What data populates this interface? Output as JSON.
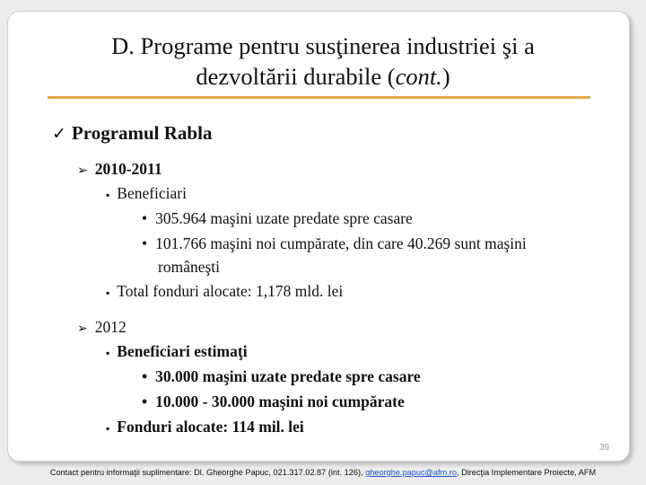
{
  "slide": {
    "title_line1": "D. Programe pentru susţinerea industriei şi a",
    "title_line2_prefix": "dezvoltării durabile (",
    "title_line2_italic": "cont.",
    "title_line2_suffix": ")",
    "program_heading": "Programul Rabla",
    "checkmark": "ü",
    "sections": [
      {
        "year": "2010-2011",
        "beneficiari_label": "Beneficiari",
        "items": [
          "305.964 maşini uzate predate spre casare",
          "101.766 maşini noi cumpărate, din care 40.269  sunt maşini",
          "româneşti"
        ],
        "total_label": "Total fonduri alocate: 1,178 mld. lei"
      },
      {
        "year": "2012",
        "beneficiari_label": "Beneficiari estimaţi",
        "items": [
          "30.000  maşini uzate predate spre casare",
          "10.000 - 30.000 maşini noi cumpărate"
        ],
        "total_label": "Fonduri alocate: 114 mil. lei"
      }
    ],
    "page_number": "39"
  },
  "footer": {
    "prefix": "Contact pentru informaţii suplimentare: Dl. Gheorghe Papuc, 021.317.02.87 (int. 126), ",
    "email": "gheorghe.papuc@afm.ro",
    "suffix": ", Direcţia Implementare Proiecte, AFM"
  },
  "colors": {
    "accent_rule": "#e0a84b",
    "link": "#2255cc"
  }
}
